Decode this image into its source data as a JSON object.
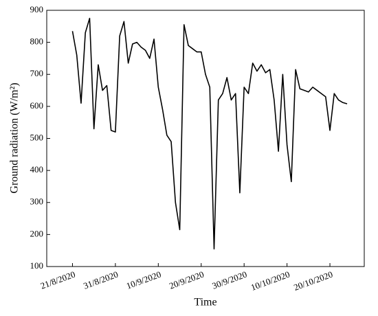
{
  "chart_data": {
    "type": "line",
    "x_label": "Time",
    "y_label": "Ground radiation (W/m²)",
    "x": [
      "2020-08-21",
      "2020-08-22",
      "2020-08-23",
      "2020-08-24",
      "2020-08-25",
      "2020-08-26",
      "2020-08-27",
      "2020-08-28",
      "2020-08-29",
      "2020-08-30",
      "2020-08-31",
      "2020-09-01",
      "2020-09-02",
      "2020-09-03",
      "2020-09-04",
      "2020-09-05",
      "2020-09-06",
      "2020-09-07",
      "2020-09-08",
      "2020-09-09",
      "2020-09-10",
      "2020-09-11",
      "2020-09-12",
      "2020-09-13",
      "2020-09-14",
      "2020-09-15",
      "2020-09-16",
      "2020-09-17",
      "2020-09-18",
      "2020-09-19",
      "2020-09-20",
      "2020-09-21",
      "2020-09-22",
      "2020-09-23",
      "2020-09-24",
      "2020-09-25",
      "2020-09-26",
      "2020-09-27",
      "2020-09-28",
      "2020-09-29",
      "2020-09-30",
      "2020-10-01",
      "2020-10-02",
      "2020-10-03",
      "2020-10-04",
      "2020-10-05",
      "2020-10-06",
      "2020-10-07",
      "2020-10-08",
      "2020-10-09",
      "2020-10-10",
      "2020-10-11",
      "2020-10-12",
      "2020-10-13",
      "2020-10-14",
      "2020-10-15",
      "2020-10-16",
      "2020-10-17",
      "2020-10-18",
      "2020-10-19",
      "2020-10-20",
      "2020-10-21",
      "2020-10-22",
      "2020-10-23",
      "2020-10-24"
    ],
    "values": [
      835,
      760,
      610,
      830,
      875,
      530,
      730,
      650,
      665,
      525,
      520,
      820,
      865,
      735,
      795,
      800,
      785,
      775,
      750,
      810,
      660,
      590,
      510,
      490,
      300,
      215,
      855,
      790,
      780,
      770,
      770,
      700,
      660,
      155,
      620,
      640,
      690,
      620,
      640,
      330,
      660,
      640,
      735,
      710,
      730,
      705,
      715,
      620,
      460,
      700,
      480,
      365,
      715,
      655,
      650,
      645,
      660,
      650,
      640,
      630,
      525,
      640,
      620,
      612,
      608
    ],
    "color": "#000000",
    "xlim": [
      "2020-08-15",
      "2020-10-28"
    ],
    "xticks": [
      {
        "value": "2020-08-21",
        "label": "21/8/2020"
      },
      {
        "value": "2020-08-31",
        "label": "31/8/2020"
      },
      {
        "value": "2020-09-10",
        "label": "10/9/2020"
      },
      {
        "value": "2020-09-20",
        "label": "20/9/2020"
      },
      {
        "value": "2020-09-30",
        "label": "30/9/2020"
      },
      {
        "value": "2020-10-10",
        "label": "10/10/2020"
      },
      {
        "value": "2020-10-20",
        "label": "20/10/2020"
      }
    ],
    "ylim": [
      100,
      900
    ],
    "yticks": [
      100,
      200,
      300,
      400,
      500,
      600,
      700,
      800,
      900
    ]
  }
}
